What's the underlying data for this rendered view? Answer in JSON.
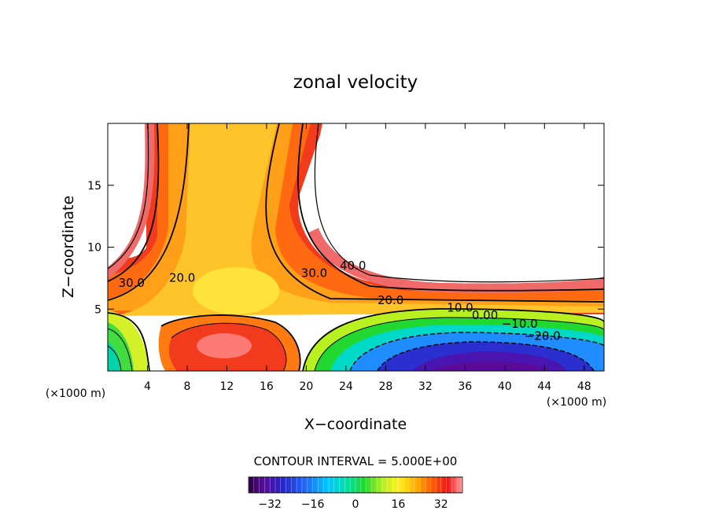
{
  "chart_data": {
    "type": "heatmap",
    "title": "zonal velocity",
    "xlabel": "X−coordinate",
    "ylabel": "Z−coordinate",
    "xunit_left": "(×1000 m)",
    "xunit_right": "(×1000 m)",
    "xlim": [
      0,
      50
    ],
    "ylim": [
      0,
      20
    ],
    "xticks": [
      4,
      8,
      12,
      16,
      20,
      24,
      28,
      32,
      36,
      40,
      44,
      48
    ],
    "yticks": [
      5,
      10,
      15
    ],
    "contour_interval_text": "CONTOUR INTERVAL = 5.000E+00",
    "contour_labels": [
      {
        "text": "30.0",
        "x": 2.4,
        "z": 6.8
      },
      {
        "text": "20.0",
        "x": 7.5,
        "z": 7.2
      },
      {
        "text": "40.0",
        "x": 24.7,
        "z": 8.2
      },
      {
        "text": "30.0",
        "x": 20.8,
        "z": 7.6
      },
      {
        "text": "20.0",
        "x": 28.5,
        "z": 5.4
      },
      {
        "text": "10.0",
        "x": 35.5,
        "z": 4.8
      },
      {
        "text": "0.00",
        "x": 38.0,
        "z": 4.2
      },
      {
        "text": "−10.0",
        "x": 41.5,
        "z": 3.5
      },
      {
        "text": "−20.0",
        "x": 43.8,
        "z": 2.5
      }
    ],
    "colorbar": {
      "range": [
        -40,
        40
      ],
      "ticks": [
        "−32",
        "−16",
        "0",
        "16",
        "32"
      ],
      "tick_values": [
        -32,
        -16,
        0,
        16,
        32
      ]
    }
  }
}
